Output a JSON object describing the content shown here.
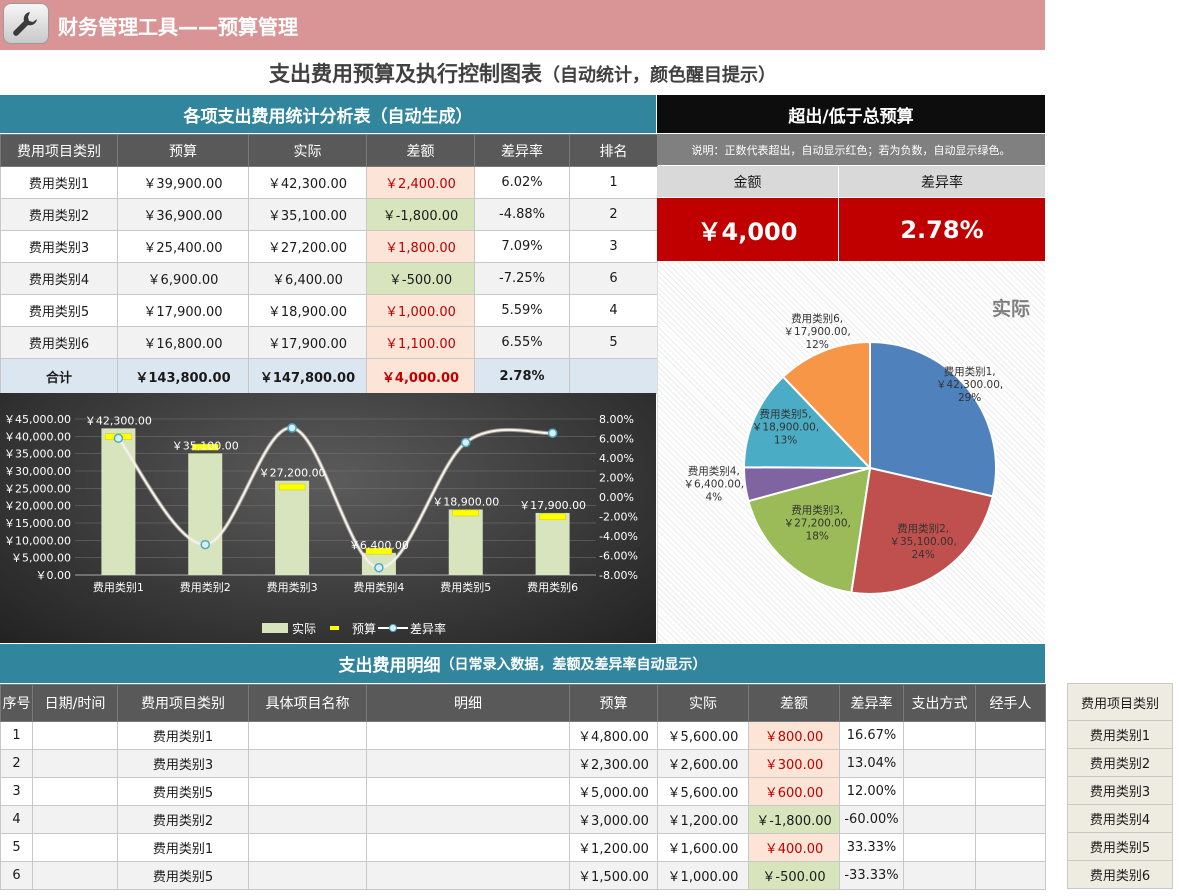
{
  "app": {
    "title": "财务管理工具——预算管理",
    "icon": "wrench-icon"
  },
  "page_title": "支出费用预算及执行控制图表",
  "page_subtitle": "（自动统计，颜色醒目提示）",
  "stats": {
    "title": "各项支出费用统计分析表（自动生成）",
    "headers": [
      "费用项目类别",
      "预算",
      "实际",
      "差额",
      "差异率",
      "排名"
    ],
    "rows": [
      {
        "cat": "费用类别1",
        "budget": "￥39,900.00",
        "actual": "￥42,300.00",
        "diff": "￥2,400.00",
        "rate": "6.02%",
        "rank": "1",
        "sign": "pos"
      },
      {
        "cat": "费用类别2",
        "budget": "￥36,900.00",
        "actual": "￥35,100.00",
        "diff": "￥-1,800.00",
        "rate": "-4.88%",
        "rank": "2",
        "sign": "neg"
      },
      {
        "cat": "费用类别3",
        "budget": "￥25,400.00",
        "actual": "￥27,200.00",
        "diff": "￥1,800.00",
        "rate": "7.09%",
        "rank": "3",
        "sign": "pos"
      },
      {
        "cat": "费用类别4",
        "budget": "￥6,900.00",
        "actual": "￥6,400.00",
        "diff": "￥-500.00",
        "rate": "-7.25%",
        "rank": "6",
        "sign": "neg"
      },
      {
        "cat": "费用类别5",
        "budget": "￥17,900.00",
        "actual": "￥18,900.00",
        "diff": "￥1,000.00",
        "rate": "5.59%",
        "rank": "4",
        "sign": "pos"
      },
      {
        "cat": "费用类别6",
        "budget": "￥16,800.00",
        "actual": "￥17,900.00",
        "diff": "￥1,100.00",
        "rate": "6.55%",
        "rank": "5",
        "sign": "pos"
      }
    ],
    "total": {
      "cat": "合计",
      "budget": "￥143,800.00",
      "actual": "￥147,800.00",
      "diff": "￥4,000.00",
      "rate": "2.78%"
    }
  },
  "summary": {
    "title": "超出/低于总预算",
    "note": "说明：正数代表超出，自动显示红色；若为负数，自动显示绿色。",
    "amount_label": "金额",
    "rate_label": "差异率",
    "amount": "￥4,000",
    "rate": "2.78%"
  },
  "detail": {
    "title": "支出费用明细",
    "subtitle": "（日常录入数据，差额及差异率自动显示）",
    "headers": [
      "序号",
      "日期/时间",
      "费用项目类别",
      "具体项目名称",
      "明细",
      "预算",
      "实际",
      "差额",
      "差异率",
      "支出方式",
      "经手人"
    ],
    "rows": [
      {
        "no": "1",
        "date": "",
        "cat": "费用类别1",
        "item": "",
        "detail": "",
        "budget": "￥4,800.00",
        "actual": "￥5,600.00",
        "diff": "￥800.00",
        "rate": "16.67%",
        "method": "",
        "handler": "",
        "sign": "pos"
      },
      {
        "no": "2",
        "date": "",
        "cat": "费用类别3",
        "item": "",
        "detail": "",
        "budget": "￥2,300.00",
        "actual": "￥2,600.00",
        "diff": "￥300.00",
        "rate": "13.04%",
        "method": "",
        "handler": "",
        "sign": "pos"
      },
      {
        "no": "3",
        "date": "",
        "cat": "费用类别5",
        "item": "",
        "detail": "",
        "budget": "￥5,000.00",
        "actual": "￥5,600.00",
        "diff": "￥600.00",
        "rate": "12.00%",
        "method": "",
        "handler": "",
        "sign": "pos"
      },
      {
        "no": "4",
        "date": "",
        "cat": "费用类别2",
        "item": "",
        "detail": "",
        "budget": "￥3,000.00",
        "actual": "￥1,200.00",
        "diff": "￥-1,800.00",
        "rate": "-60.00%",
        "method": "",
        "handler": "",
        "sign": "neg"
      },
      {
        "no": "5",
        "date": "",
        "cat": "费用类别1",
        "item": "",
        "detail": "",
        "budget": "￥1,200.00",
        "actual": "￥1,600.00",
        "diff": "￥400.00",
        "rate": "33.33%",
        "method": "",
        "handler": "",
        "sign": "pos"
      },
      {
        "no": "6",
        "date": "",
        "cat": "费用类别5",
        "item": "",
        "detail": "",
        "budget": "￥1,500.00",
        "actual": "￥1,000.00",
        "diff": "￥-500.00",
        "rate": "-33.33%",
        "method": "",
        "handler": "",
        "sign": "neg"
      }
    ]
  },
  "category_list": {
    "header": "费用项目类别",
    "items": [
      "费用类别1",
      "费用类别2",
      "费用类别3",
      "费用类别4",
      "费用类别5",
      "费用类别6"
    ]
  },
  "chart_data": [
    {
      "type": "bar",
      "categories": [
        "费用类别1",
        "费用类别2",
        "费用类别3",
        "费用类别4",
        "费用类别5",
        "费用类别6"
      ],
      "series": [
        {
          "name": "实际",
          "type": "bar",
          "values": [
            42300,
            35100,
            27200,
            6400,
            18900,
            17900
          ],
          "color": "#d7e4bd"
        },
        {
          "name": "预算",
          "type": "marker",
          "values": [
            39900,
            36900,
            25400,
            6900,
            17900,
            16800
          ],
          "color": "#ffff00"
        },
        {
          "name": "差异率",
          "type": "line",
          "axis": "right",
          "values": [
            6.02,
            -4.88,
            7.09,
            -7.25,
            5.59,
            6.55
          ],
          "color": "#f2f2f2"
        }
      ],
      "data_labels": [
        "￥42,300.00",
        "￥35,100.00",
        "￥27,200.00",
        "￥6,400.00",
        "￥18,900.00",
        "￥17,900.00"
      ],
      "y_ticks": [
        "￥0.00",
        "￥5,000.00",
        "￥10,000.00",
        "￥15,000.00",
        "￥20,000.00",
        "￥25,000.00",
        "￥30,000.00",
        "￥35,000.00",
        "￥40,000.00",
        "￥45,000.00"
      ],
      "y2_ticks": [
        "-8.00%",
        "-6.00%",
        "-4.00%",
        "-2.00%",
        "0.00%",
        "2.00%",
        "4.00%",
        "6.00%",
        "8.00%"
      ],
      "ylim": [
        0,
        45000
      ],
      "y2lim": [
        -8,
        8
      ],
      "legend_position": "bottom",
      "grid": true
    },
    {
      "type": "pie",
      "title": "实际",
      "categories": [
        "费用类别1",
        "费用类别2",
        "费用类别3",
        "费用类别4",
        "费用类别5",
        "费用类别6"
      ],
      "values": [
        42300,
        35100,
        27200,
        6400,
        18900,
        17900
      ],
      "value_labels": [
        "￥42,300.00",
        "￥35,100.00",
        "￥27,200.00",
        "￥6,400.00",
        "￥18,900.00",
        "￥17,900.00"
      ],
      "percent_labels": [
        "29%",
        "24%",
        "18%",
        "4%",
        "13%",
        "12%"
      ],
      "colors": [
        "#4f81bd",
        "#c0504d",
        "#9bbb59",
        "#8064a2",
        "#4bacc6",
        "#f79646"
      ]
    }
  ]
}
